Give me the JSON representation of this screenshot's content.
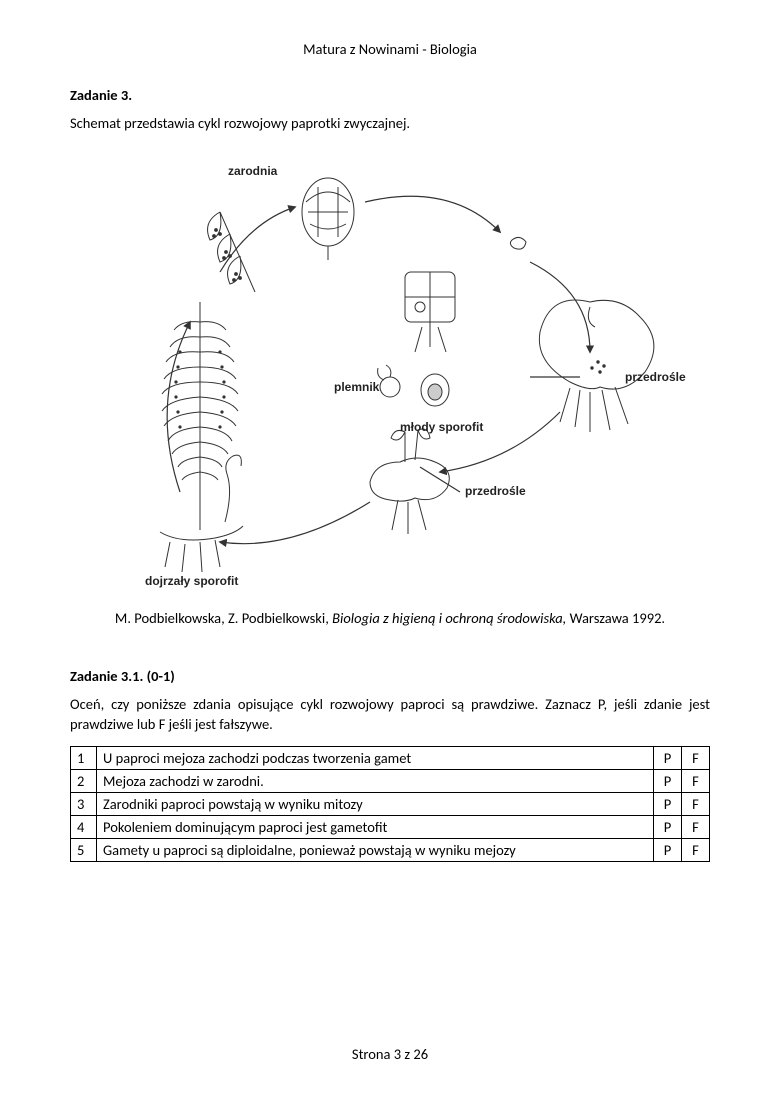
{
  "header": "Matura z  Nowinami - Biologia",
  "task3": {
    "title": "Zadanie 3.",
    "desc": "Schemat przedstawia cykl rozwojowy paprotki zwyczajnej.",
    "labels": {
      "zarodnia": "zarodnia",
      "plemnik": "plemnik",
      "przedrosle1": "przedrośle",
      "mlody": "młody sporofit",
      "przedrosle2": "przedrośle",
      "dojrzaly": "dojrzały sporofit"
    },
    "citation_author": "M. Podbielkowska, Z. Podbielkowski, ",
    "citation_title": "Biologia z higieną i ochroną środowiska, ",
    "citation_rest": "Warszawa 1992."
  },
  "task31": {
    "title": "Zadanie 3.1. (0-1)",
    "desc": "Oceń, czy poniższe zdania opisujące cykl rozwojowy paproci są prawdziwe. Zaznacz P, jeśli zdanie jest prawdziwe lub F jeśli jest fałszywe.",
    "rows": [
      {
        "n": "1",
        "t": "U paproci mejoza zachodzi podczas tworzenia gamet",
        "p": "P",
        "f": "F"
      },
      {
        "n": "2",
        "t": "Mejoza zachodzi w zarodni.",
        "p": "P",
        "f": "F"
      },
      {
        "n": "3",
        "t": "Zarodniki paproci powstają w wyniku mitozy",
        "p": "P",
        "f": "F"
      },
      {
        "n": "4",
        "t": "Pokoleniem dominującym paproci jest gametofit",
        "p": "P",
        "f": "F"
      },
      {
        "n": "5",
        "t": "Gamety u paproci są diploidalne, ponieważ powstają w wyniku mejozy",
        "p": "P",
        "f": "F"
      }
    ]
  },
  "footer": "Strona 3 z 26",
  "colors": {
    "text": "#000000",
    "bg": "#ffffff",
    "stroke": "#333333"
  }
}
